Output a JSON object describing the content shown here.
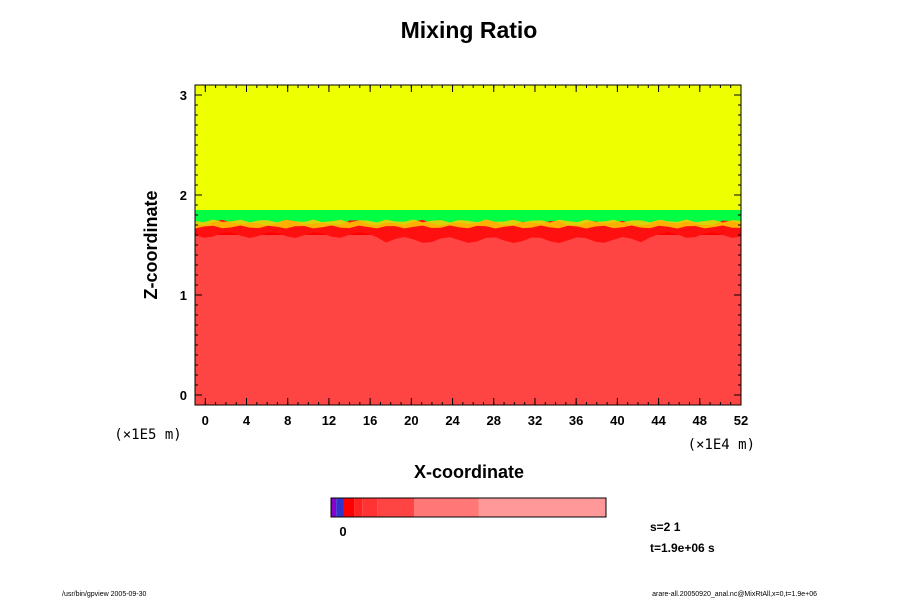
{
  "chart_data": {
    "type": "heatmap",
    "title": "Mixing Ratio",
    "xlabel": "X-coordinate",
    "ylabel": "Z-coordinate",
    "x_unit": "(×1E4 m)",
    "y_unit": "(×1E5 m)",
    "xlim": [
      -1,
      52
    ],
    "ylim": [
      -0.1,
      3.1
    ],
    "x_ticks": [
      "0",
      "4",
      "8",
      "12",
      "16",
      "20",
      "24",
      "28",
      "32",
      "36",
      "40",
      "44",
      "48",
      "52"
    ],
    "y_ticks": [
      "0",
      "1",
      "2",
      "3"
    ],
    "layers": [
      {
        "name": "lower",
        "z_min": -0.1,
        "z_max": 1.6,
        "color": "#ff4444"
      },
      {
        "name": "interface",
        "z_min": 1.6,
        "z_max": 1.7,
        "color": "#ff0000"
      },
      {
        "name": "transition",
        "z_min": 1.7,
        "z_max": 1.85,
        "color": "#00ff44"
      },
      {
        "name": "upper",
        "z_min": 1.85,
        "z_max": 3.1,
        "color": "#eeff00"
      }
    ],
    "colorbar": {
      "zero_label": "0",
      "segments": [
        {
          "color": "#8800cc",
          "w": 2
        },
        {
          "color": "#3333cc",
          "w": 3
        },
        {
          "color": "#ff0000",
          "w": 4
        },
        {
          "color": "#ff2222",
          "w": 3
        },
        {
          "color": "#ff3333",
          "w": 6
        },
        {
          "color": "#ff4444",
          "w": 14
        },
        {
          "color": "#ff7777",
          "w": 25
        },
        {
          "color": "#ff9999",
          "w": 49
        }
      ]
    }
  },
  "info": {
    "step": "s=2 1",
    "time": "t=1.9e+06 s"
  },
  "footer": {
    "left": "/usr/bin/gpview 2005-09-30",
    "right": "arare-all.20050920_anal.nc@MixRtAll,x=0,t=1.9e+06"
  }
}
